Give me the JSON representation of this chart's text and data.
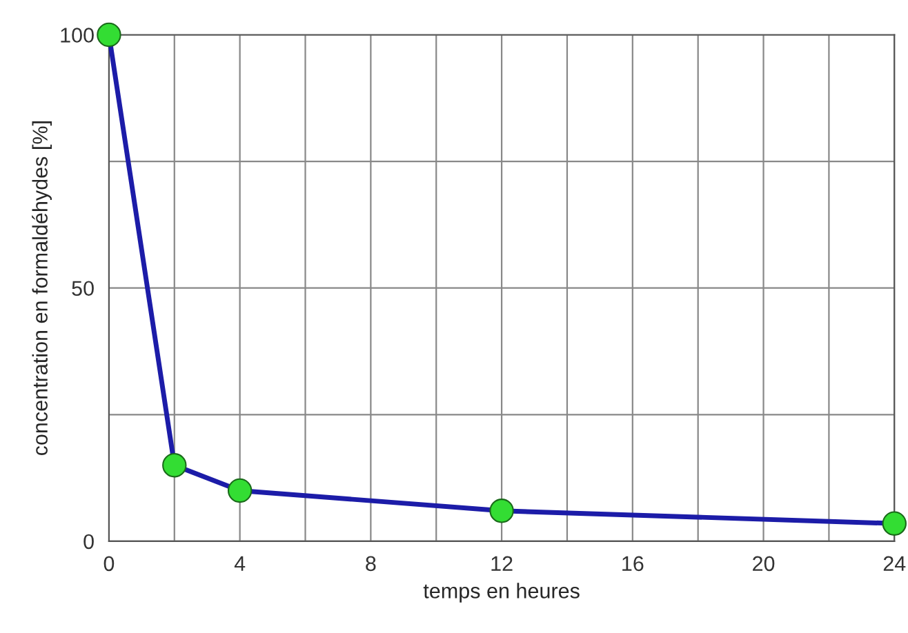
{
  "chart_data": {
    "type": "line",
    "xlabel": "temps en heures",
    "ylabel": "concentration en formaldéhydes [%]",
    "x": [
      0,
      2,
      4,
      12,
      24
    ],
    "series": [
      {
        "color": "#1c1ca8",
        "values": [
          100,
          15,
          10,
          6,
          3.5
        ]
      }
    ],
    "marker": "circle",
    "xlim": [
      0,
      24
    ],
    "ylim": [
      0,
      100
    ],
    "xticks": [
      0,
      {
        "value": 2,
        "label": null
      },
      4,
      {
        "value": 6,
        "label": null
      },
      8,
      {
        "value": 10,
        "label": null
      },
      12,
      {
        "value": 14,
        "label": null
      },
      16,
      {
        "value": 18,
        "label": null
      },
      20,
      {
        "value": 22,
        "label": null
      },
      24
    ],
    "yticks": [
      0,
      {
        "value": 25,
        "label": null
      },
      50,
      {
        "value": 75,
        "label": null
      },
      100
    ],
    "grid": true
  }
}
